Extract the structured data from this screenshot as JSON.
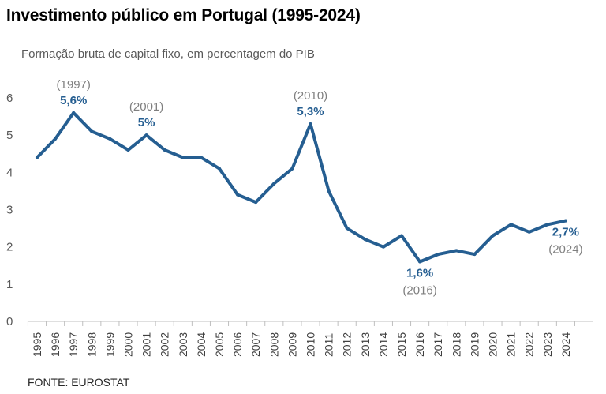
{
  "header": {
    "title": "Investimento público em Portugal (1995-2024)",
    "subtitle": "Formação bruta de capital fixo, em percentagem do PIB"
  },
  "footer": {
    "source": "FONTE: EUROSTAT"
  },
  "colors": {
    "line": "#255e91",
    "axis": "#bfbfbf",
    "value_label": "#255e91",
    "year_label": "#7f7f7f"
  },
  "chart_data": {
    "type": "line",
    "title": "Investimento público em Portugal (1995-2024)",
    "subtitle": "Formação bruta de capital fixo, em percentagem do PIB",
    "xlabel": "",
    "ylabel": "",
    "ylim": [
      0,
      6
    ],
    "yticks": [
      "0",
      "1",
      "2",
      "3",
      "4",
      "5",
      "6"
    ],
    "grid": false,
    "categories": [
      "1995",
      "1996",
      "1997",
      "1998",
      "1999",
      "2000",
      "2001",
      "2002",
      "2003",
      "2004",
      "2005",
      "2006",
      "2007",
      "2008",
      "2009",
      "2010",
      "2011",
      "2012",
      "2013",
      "2014",
      "2015",
      "2016",
      "2017",
      "2018",
      "2019",
      "2020",
      "2021",
      "2022",
      "2023",
      "2024"
    ],
    "series": [
      {
        "values": [
          4.4,
          4.9,
          5.6,
          5.1,
          4.9,
          4.6,
          5.0,
          4.6,
          4.4,
          4.4,
          4.1,
          3.4,
          3.2,
          3.7,
          4.1,
          5.3,
          3.5,
          2.5,
          2.2,
          2.0,
          2.3,
          1.6,
          1.8,
          1.9,
          1.8,
          2.3,
          2.6,
          2.4,
          2.6,
          2.7
        ]
      }
    ],
    "annotations": [
      {
        "category": "1997",
        "value": 5.6,
        "value_label": "5,6%",
        "year_label": "(1997)",
        "position": "above"
      },
      {
        "category": "2001",
        "value": 5.0,
        "value_label": "5%",
        "year_label": "(2001)",
        "position": "above"
      },
      {
        "category": "2010",
        "value": 5.3,
        "value_label": "5,3%",
        "year_label": "(2010)",
        "position": "above"
      },
      {
        "category": "2016",
        "value": 1.6,
        "value_label": "1,6%",
        "year_label": "(2016)",
        "position": "below"
      },
      {
        "category": "2024",
        "value": 2.7,
        "value_label": "2,7%",
        "year_label": "(2024)",
        "position": "below"
      }
    ]
  }
}
